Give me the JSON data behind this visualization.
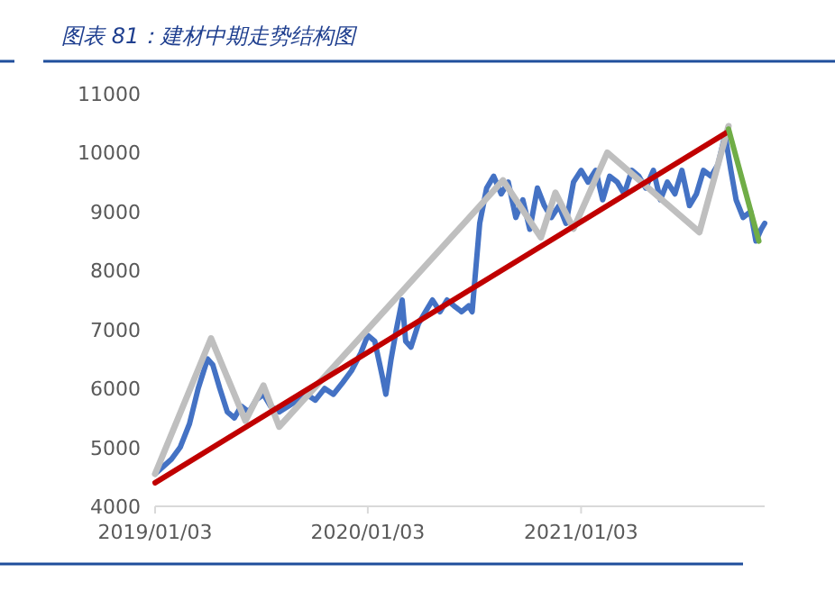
{
  "chart_data": {
    "type": "line",
    "title": "图表 81：建材中期走势结构图",
    "xlim": [
      "2019-01-03",
      "2021-11-14"
    ],
    "xticks": [
      {
        "value": "2019-01-03",
        "label": "2019/01/03"
      },
      {
        "value": "2020-01-03",
        "label": "2020/01/03"
      },
      {
        "value": "2021-01-03",
        "label": "2021/01/03"
      }
    ],
    "ylim": [
      4000,
      11000
    ],
    "yticks": [
      4000,
      5000,
      6000,
      7000,
      8000,
      9000,
      10000,
      11000
    ],
    "grid": false,
    "marker": "none",
    "line_style": "solid",
    "series": [
      {
        "color": "#4472c4",
        "x": [
          "2019-01-03",
          "2019-01-31",
          "2019-02-15",
          "2019-03-03",
          "2019-03-18",
          "2019-04-03",
          "2019-04-12",
          "2019-04-24",
          "2019-05-07",
          "2019-05-19",
          "2019-05-31",
          "2019-06-13",
          "2019-06-25",
          "2019-07-08",
          "2019-07-20",
          "2019-08-04",
          "2019-08-20",
          "2019-09-04",
          "2019-09-20",
          "2019-10-05",
          "2019-10-21",
          "2019-11-05",
          "2019-11-21",
          "2019-12-06",
          "2019-12-22",
          "2020-01-03",
          "2020-01-15",
          "2020-01-28",
          "2020-02-03",
          "2020-02-12",
          "2020-02-21",
          "2020-03-02",
          "2020-03-08",
          "2020-03-17",
          "2020-03-30",
          "2020-04-11",
          "2020-04-23",
          "2020-05-06",
          "2020-05-18",
          "2020-05-30",
          "2020-06-12",
          "2020-06-24",
          "2020-06-30",
          "2020-07-13",
          "2020-07-25",
          "2020-08-06",
          "2020-08-19",
          "2020-08-31",
          "2020-09-13",
          "2020-09-25",
          "2020-10-07",
          "2020-10-20",
          "2020-11-01",
          "2020-11-13",
          "2020-11-26",
          "2020-12-08",
          "2020-12-21",
          "2021-01-03",
          "2021-01-15",
          "2021-01-28",
          "2021-02-09",
          "2021-02-21",
          "2021-03-06",
          "2021-03-18",
          "2021-03-31",
          "2021-04-12",
          "2021-04-24",
          "2021-05-07",
          "2021-05-19",
          "2021-05-31",
          "2021-06-13",
          "2021-06-25",
          "2021-07-08",
          "2021-07-20",
          "2021-08-01",
          "2021-08-14",
          "2021-08-26",
          "2021-09-07",
          "2021-09-17",
          "2021-09-26",
          "2021-10-08",
          "2021-10-21",
          "2021-10-30",
          "2021-11-08",
          "2021-11-14"
        ],
        "values": [
          4550,
          4800,
          5000,
          5400,
          6000,
          6500,
          6400,
          6000,
          5600,
          5500,
          5700,
          5600,
          5800,
          5900,
          5700,
          5600,
          5700,
          5800,
          5900,
          5800,
          6000,
          5900,
          6100,
          6300,
          6600,
          6900,
          6800,
          6200,
          5900,
          6500,
          7000,
          7500,
          6800,
          6700,
          7100,
          7300,
          7500,
          7300,
          7500,
          7400,
          7300,
          7400,
          7300,
          8800,
          9400,
          9600,
          9300,
          9500,
          8900,
          9200,
          8700,
          9400,
          9100,
          8900,
          9100,
          8800,
          9500,
          9700,
          9500,
          9700,
          9200,
          9600,
          9500,
          9300,
          9700,
          9600,
          9400,
          9700,
          9200,
          9500,
          9300,
          9700,
          9100,
          9300,
          9700,
          9600,
          9800,
          10300,
          9700,
          9200,
          8900,
          9000,
          8500,
          8700,
          8800
        ]
      },
      {
        "color": "#bfbfbf",
        "x": [
          "2019-01-03",
          "2019-04-09",
          "2019-06-07",
          "2019-07-08",
          "2019-08-04",
          "2020-08-22",
          "2020-10-26",
          "2020-11-20",
          "2020-12-21",
          "2021-02-17",
          "2021-07-25",
          "2021-09-13"
        ],
        "values": [
          4550,
          6850,
          5450,
          6050,
          5350,
          9530,
          8560,
          9320,
          8710,
          10000,
          8650,
          10450
        ]
      },
      {
        "color": "#c00000",
        "x": [
          "2019-01-03",
          "2021-09-13"
        ],
        "values": [
          4400,
          10360
        ]
      },
      {
        "color": "#70ad47",
        "x": [
          "2021-09-13",
          "2021-11-04"
        ],
        "values": [
          10400,
          8500
        ]
      }
    ]
  }
}
